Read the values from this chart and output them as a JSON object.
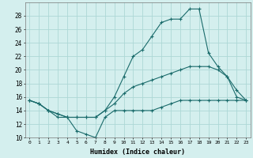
{
  "xlabel": "Humidex (Indice chaleur)",
  "bg_color": "#d4efee",
  "grid_color": "#add8d6",
  "line_color": "#1a6b6b",
  "xlim": [
    -0.5,
    23.5
  ],
  "ylim": [
    10,
    30
  ],
  "yticks": [
    10,
    12,
    14,
    16,
    18,
    20,
    22,
    24,
    26,
    28
  ],
  "xticks": [
    0,
    1,
    2,
    3,
    4,
    5,
    6,
    7,
    8,
    9,
    10,
    11,
    12,
    13,
    14,
    15,
    16,
    17,
    18,
    19,
    20,
    21,
    22,
    23
  ],
  "xtick_labels": [
    "0",
    "1",
    "2",
    "3",
    "4",
    "5",
    "6",
    "7",
    "8",
    "9",
    "10",
    "11",
    "12",
    "13",
    "14",
    "15",
    "16",
    "17",
    "18",
    "19",
    "20",
    "21",
    "22",
    "23"
  ],
  "series": [
    {
      "x": [
        0,
        1,
        2,
        3,
        4,
        5,
        6,
        7,
        8,
        9,
        10,
        11,
        12,
        13,
        14,
        15,
        16,
        17,
        18,
        19,
        20,
        21,
        22,
        23
      ],
      "y": [
        15.5,
        15,
        14,
        13,
        13,
        11,
        10.5,
        10,
        13,
        14,
        14,
        14,
        14,
        14,
        14.5,
        15,
        15.5,
        15.5,
        15.5,
        15.5,
        15.5,
        15.5,
        15.5,
        15.5
      ]
    },
    {
      "x": [
        0,
        1,
        2,
        3,
        4,
        5,
        6,
        7,
        8,
        9,
        10,
        11,
        12,
        13,
        14,
        15,
        16,
        17,
        18,
        19,
        20,
        21,
        22,
        23
      ],
      "y": [
        15.5,
        15,
        14,
        13.5,
        13,
        13,
        13,
        13,
        14,
        15,
        16.5,
        17.5,
        18,
        18.5,
        19,
        19.5,
        20,
        20.5,
        20.5,
        20.5,
        20,
        19,
        16,
        15.5
      ]
    },
    {
      "x": [
        0,
        1,
        2,
        3,
        4,
        5,
        6,
        7,
        8,
        9,
        10,
        11,
        12,
        13,
        14,
        15,
        16,
        17,
        18,
        19,
        20,
        21,
        22,
        23
      ],
      "y": [
        15.5,
        15,
        14,
        13.5,
        13,
        13,
        13,
        13,
        14,
        16,
        19,
        22,
        23,
        25,
        27,
        27.5,
        27.5,
        29,
        29,
        22.5,
        20.5,
        19,
        17,
        15.5
      ]
    }
  ]
}
